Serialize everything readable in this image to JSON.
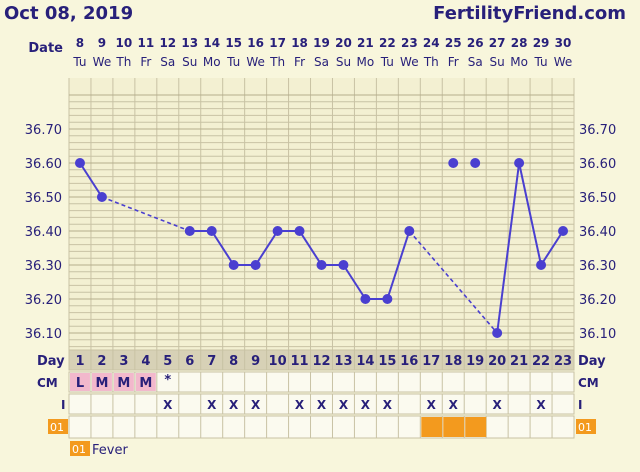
{
  "header": {
    "date": "Oct 08, 2019",
    "brand": "FertilityFriend.com"
  },
  "labels": {
    "date_row": "Date",
    "day_row": "Day",
    "cm_row": "CM",
    "i_row": "I",
    "fever_tag": "01",
    "legend_text": "Fever"
  },
  "colors": {
    "line": "#4a3fd0",
    "text": "#28207a",
    "grid": "#c8c2a4",
    "pink": "#f2b8cc",
    "orange": "#f39a1e"
  },
  "chart_data": {
    "type": "line",
    "ylim": [
      36.0,
      36.7
    ],
    "yticks": [
      "36.10",
      "36.20",
      "36.30",
      "36.40",
      "36.50",
      "36.60",
      "36.70"
    ],
    "dates": [
      "8",
      "9",
      "10",
      "11",
      "12",
      "13",
      "14",
      "15",
      "16",
      "17",
      "18",
      "19",
      "20",
      "21",
      "22",
      "23",
      "24",
      "25",
      "26",
      "27",
      "28",
      "29",
      "30"
    ],
    "weekdays": [
      "Tu",
      "We",
      "Th",
      "Fr",
      "Sa",
      "Su",
      "Mo",
      "Tu",
      "We",
      "Th",
      "Fr",
      "Sa",
      "Su",
      "Mo",
      "Tu",
      "We",
      "Th",
      "Fr",
      "Sa",
      "Su",
      "Mo",
      "Tu",
      "We"
    ],
    "cycle_days": [
      "1",
      "2",
      "3",
      "4",
      "5",
      "6",
      "7",
      "8",
      "9",
      "10",
      "11",
      "12",
      "13",
      "14",
      "15",
      "16",
      "17",
      "18",
      "19",
      "20",
      "21",
      "22",
      "23"
    ],
    "temperatures": [
      36.6,
      36.5,
      null,
      null,
      null,
      36.4,
      36.4,
      36.3,
      36.3,
      36.4,
      36.4,
      36.3,
      36.3,
      36.2,
      36.2,
      36.4,
      null,
      36.6,
      36.6,
      36.1,
      36.6,
      36.3,
      36.4
    ],
    "discarded_days": [
      18,
      19
    ],
    "cervical_mucus": [
      "L",
      "M",
      "M",
      "M",
      "*",
      "",
      "",
      "",
      "",
      "",
      "",
      "",
      "",
      "",
      "",
      "",
      "",
      "",
      "",
      "",
      "",
      "",
      ""
    ],
    "intercourse": [
      "",
      "",
      "",
      "",
      "X",
      "",
      "X",
      "X",
      "X",
      "",
      "X",
      "X",
      "X",
      "X",
      "X",
      "",
      "X",
      "X",
      "",
      "X",
      "",
      "X",
      ""
    ],
    "fever": [
      false,
      false,
      false,
      false,
      false,
      false,
      false,
      false,
      false,
      false,
      false,
      false,
      false,
      false,
      false,
      false,
      true,
      true,
      true,
      false,
      false,
      false,
      false
    ]
  }
}
